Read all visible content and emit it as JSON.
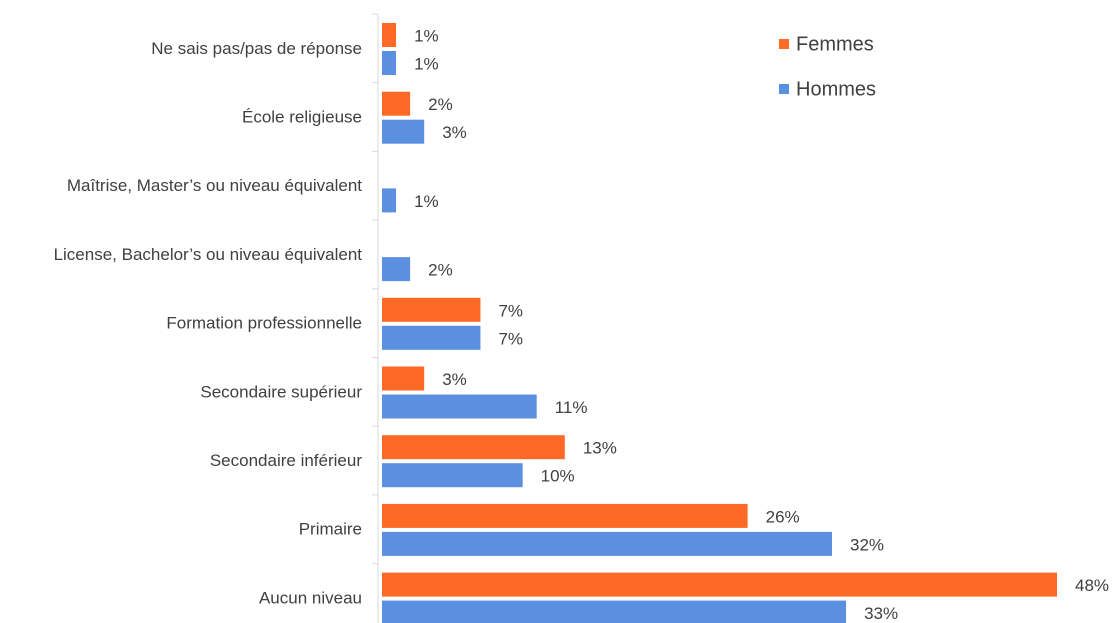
{
  "chart_data": {
    "type": "bar",
    "orientation": "horizontal",
    "categories": [
      "Ne sais pas/pas de réponse",
      "École religieuse",
      "Maîtrise, Master’s ou niveau équivalent",
      "License, Bachelor’s ou niveau équivalent",
      "Formation professionnelle",
      "Secondaire supérieur",
      "Secondaire inférieur",
      "Primaire",
      "Aucun niveau"
    ],
    "series": [
      {
        "name": "Femmes",
        "color": "#fd6a26",
        "values": [
          1,
          2,
          null,
          null,
          7,
          3,
          13,
          26,
          48
        ],
        "value_labels": [
          "1%",
          "2%",
          null,
          null,
          "7%",
          "3%",
          "13%",
          "26%",
          "48%"
        ]
      },
      {
        "name": "Hommes",
        "color": "#5b8fe0",
        "values": [
          1,
          3,
          1,
          2,
          7,
          11,
          10,
          32,
          33
        ],
        "value_labels": [
          "1%",
          "3%",
          "1%",
          "2%",
          "7%",
          "11%",
          "10%",
          "32%",
          "33%"
        ]
      }
    ]
  }
}
